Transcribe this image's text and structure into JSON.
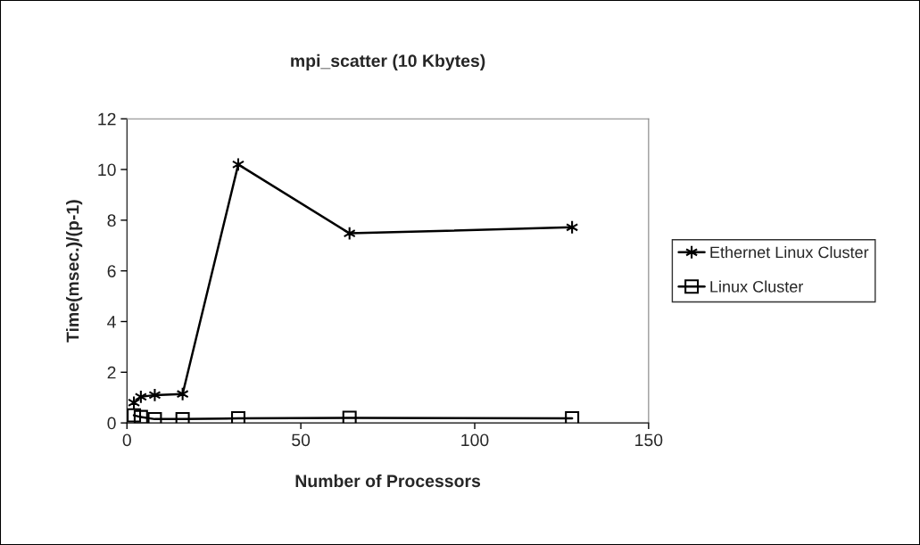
{
  "chart_data": {
    "type": "line",
    "title": "mpi_scatter (10 Kbytes)",
    "xlabel": "Number of Processors",
    "ylabel": "Time(msec.)/(p-1)",
    "xlim": [
      0,
      150
    ],
    "xticks": [
      0,
      50,
      100,
      150
    ],
    "ylim": [
      0,
      12
    ],
    "yticks": [
      0,
      2,
      4,
      6,
      8,
      10,
      12
    ],
    "grid": false,
    "legend": "right",
    "line_style": "solid",
    "series": [
      {
        "name": "Ethernet Linux Cluster",
        "color": "#000000",
        "marker": "cross",
        "x": [
          2,
          4,
          8,
          16,
          32,
          64,
          128
        ],
        "values": [
          0.8,
          1.03,
          1.1,
          1.14,
          10.2,
          7.48,
          7.72
        ]
      },
      {
        "name": "Linux Cluster",
        "color": "#000000",
        "marker": "square",
        "x": [
          2,
          4,
          8,
          16,
          32,
          64,
          128
        ],
        "values": [
          0.3,
          0.23,
          0.15,
          0.15,
          0.18,
          0.2,
          0.18
        ]
      }
    ]
  }
}
